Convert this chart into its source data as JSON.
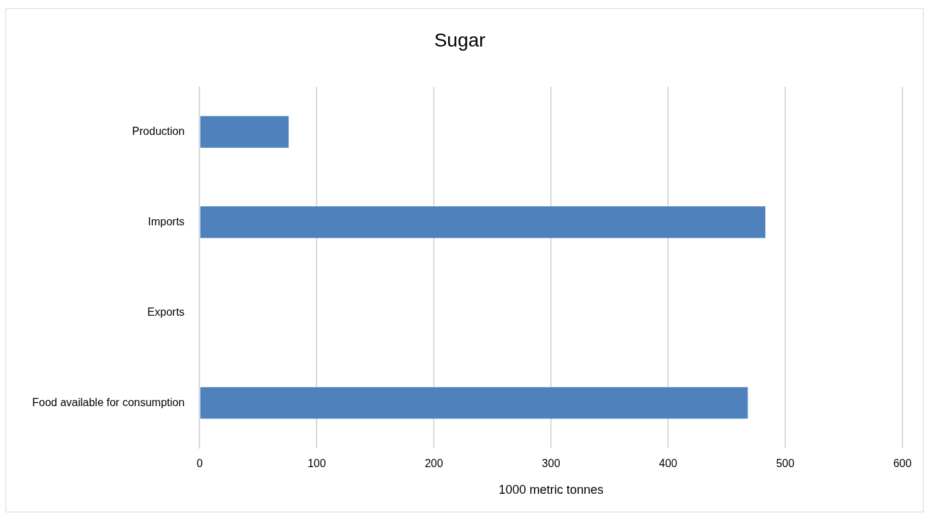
{
  "chart_data": {
    "type": "bar",
    "orientation": "horizontal",
    "title": "Sugar",
    "xlabel": "1000 metric tonnes",
    "categories": [
      "Production",
      "Imports",
      "Exports",
      "Food available for consumption"
    ],
    "values": [
      76,
      483,
      0,
      468
    ],
    "color": "#4f81bd",
    "xlim": [
      0,
      600
    ],
    "xticks": [
      0,
      100,
      200,
      300,
      400,
      500,
      600
    ],
    "grid": "x",
    "legend": false
  }
}
